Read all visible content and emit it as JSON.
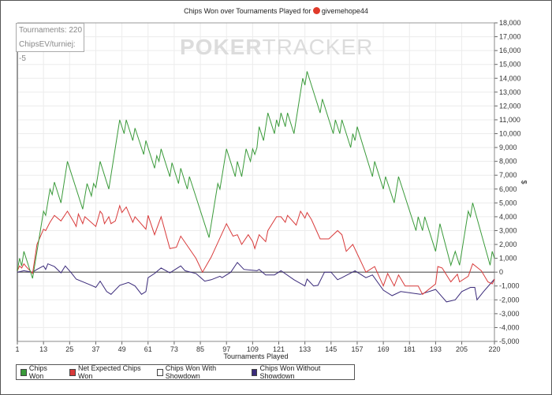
{
  "title_prefix": "Chips Won over Tournaments Played for",
  "player": "givemehope44",
  "watermark": {
    "bold": "POKER",
    "light": "TRACKER"
  },
  "stats": {
    "tournaments": "Tournaments: 220",
    "chipsev": "ChipsEV/turniej: -5"
  },
  "chart_data": {
    "type": "line",
    "title": "Chips Won over Tournaments Played for givemehope44",
    "xlabel": "Tournaments Played",
    "ylabel": "$",
    "xlim": [
      1,
      220
    ],
    "ylim": [
      -5000,
      18000
    ],
    "xticks": [
      1,
      13,
      25,
      37,
      49,
      61,
      73,
      85,
      97,
      109,
      121,
      133,
      145,
      157,
      169,
      181,
      193,
      205,
      220
    ],
    "yticks": [
      -5000,
      -4000,
      -3000,
      -2000,
      -1000,
      0,
      1000,
      2000,
      3000,
      4000,
      5000,
      6000,
      7000,
      8000,
      9000,
      10000,
      11000,
      12000,
      13000,
      14000,
      15000,
      16000,
      17000,
      18000
    ],
    "ytick_labels": [
      "-5,000",
      "-4,000",
      "-3,000",
      "-2,000",
      "-1,000",
      "0",
      "1,000",
      "2,000",
      "3,000",
      "4,000",
      "5,000",
      "6,000",
      "7,000",
      "8,000",
      "9,000",
      "10,000",
      "11,000",
      "12,000",
      "13,000",
      "14,000",
      "15,000",
      "16,000",
      "17,000",
      "18,000"
    ],
    "grid": true,
    "legend_position": "bottom-left",
    "series": [
      {
        "name": "Chips Won",
        "color": "#3a9a3a",
        "points": [
          [
            1,
            100
          ],
          [
            2,
            1000
          ],
          [
            3,
            450
          ],
          [
            4,
            1500
          ],
          [
            8,
            -450
          ],
          [
            13,
            4400
          ],
          [
            14,
            4100
          ],
          [
            16,
            6000
          ],
          [
            17,
            5600
          ],
          [
            18,
            6500
          ],
          [
            21,
            5000
          ],
          [
            24,
            8000
          ],
          [
            31,
            4550
          ],
          [
            33,
            6400
          ],
          [
            35,
            5500
          ],
          [
            36,
            6400
          ],
          [
            37,
            6100
          ],
          [
            39,
            8000
          ],
          [
            43,
            6000
          ],
          [
            48,
            11000
          ],
          [
            50,
            10000
          ],
          [
            51,
            11000
          ],
          [
            54,
            9500
          ],
          [
            55,
            10400
          ],
          [
            59,
            8500
          ],
          [
            60,
            9500
          ],
          [
            64,
            7500
          ],
          [
            65,
            8400
          ],
          [
            66,
            8000
          ],
          [
            67,
            8900
          ],
          [
            71,
            6900
          ],
          [
            72,
            7900
          ],
          [
            75,
            6400
          ],
          [
            76,
            7500
          ],
          [
            79,
            6000
          ],
          [
            80,
            6900
          ],
          [
            89,
            2500
          ],
          [
            93,
            6400
          ],
          [
            94,
            6000
          ],
          [
            97,
            8900
          ],
          [
            101,
            6900
          ],
          [
            102,
            8000
          ],
          [
            104,
            6900
          ],
          [
            106,
            8900
          ],
          [
            108,
            8000
          ],
          [
            109,
            8900
          ],
          [
            110,
            8500
          ],
          [
            111,
            9000
          ],
          [
            112,
            10500
          ],
          [
            114,
            9500
          ],
          [
            116,
            11500
          ],
          [
            119,
            10000
          ],
          [
            120,
            11000
          ],
          [
            121,
            10500
          ],
          [
            122,
            11500
          ],
          [
            124,
            10500
          ],
          [
            125,
            11500
          ],
          [
            128,
            10000
          ],
          [
            132,
            14000
          ],
          [
            133,
            13500
          ],
          [
            134,
            14500
          ],
          [
            140,
            11500
          ],
          [
            141,
            12500
          ],
          [
            146,
            10000
          ],
          [
            147,
            11000
          ],
          [
            149,
            10000
          ],
          [
            150,
            11000
          ],
          [
            154,
            9000
          ],
          [
            155,
            10000
          ],
          [
            156,
            9500
          ],
          [
            157,
            10500
          ],
          [
            164,
            6900
          ],
          [
            165,
            8000
          ],
          [
            169,
            6000
          ],
          [
            170,
            6900
          ],
          [
            174,
            5000
          ],
          [
            176,
            6900
          ],
          [
            184,
            3000
          ],
          [
            185,
            4000
          ],
          [
            187,
            3000
          ],
          [
            188,
            4000
          ],
          [
            193,
            1500
          ],
          [
            195,
            3500
          ],
          [
            200,
            500
          ],
          [
            202,
            1500
          ],
          [
            204,
            500
          ],
          [
            208,
            4400
          ],
          [
            209,
            4000
          ],
          [
            210,
            5000
          ],
          [
            218,
            500
          ],
          [
            219,
            1500
          ],
          [
            220,
            1000
          ]
        ]
      },
      {
        "name": "Net Expected Chips Won",
        "color": "#d83a3a",
        "points": [
          [
            1,
            100
          ],
          [
            2,
            450
          ],
          [
            3,
            300
          ],
          [
            4,
            600
          ],
          [
            5,
            400
          ],
          [
            8,
            -100
          ],
          [
            10,
            2000
          ],
          [
            13,
            3100
          ],
          [
            14,
            3000
          ],
          [
            16,
            3600
          ],
          [
            18,
            4100
          ],
          [
            21,
            3700
          ],
          [
            24,
            4400
          ],
          [
            27,
            3600
          ],
          [
            28,
            3300
          ],
          [
            29,
            4200
          ],
          [
            31,
            3500
          ],
          [
            32,
            4000
          ],
          [
            37,
            3300
          ],
          [
            39,
            4400
          ],
          [
            40,
            4200
          ],
          [
            41,
            3500
          ],
          [
            43,
            4000
          ],
          [
            44,
            3500
          ],
          [
            46,
            3700
          ],
          [
            48,
            4800
          ],
          [
            49,
            4300
          ],
          [
            51,
            4700
          ],
          [
            54,
            3600
          ],
          [
            55,
            4000
          ],
          [
            60,
            3100
          ],
          [
            61,
            4100
          ],
          [
            64,
            2700
          ],
          [
            67,
            4000
          ],
          [
            71,
            1700
          ],
          [
            74,
            1800
          ],
          [
            76,
            2600
          ],
          [
            83,
            1000
          ],
          [
            86,
            0
          ],
          [
            90,
            1100
          ],
          [
            97,
            3500
          ],
          [
            100,
            2600
          ],
          [
            102,
            2700
          ],
          [
            104,
            2000
          ],
          [
            107,
            2700
          ],
          [
            109,
            2200
          ],
          [
            110,
            1700
          ],
          [
            112,
            2700
          ],
          [
            115,
            2200
          ],
          [
            116,
            3000
          ],
          [
            120,
            4000
          ],
          [
            122,
            4000
          ],
          [
            124,
            3600
          ],
          [
            125,
            4100
          ],
          [
            129,
            3400
          ],
          [
            131,
            4400
          ],
          [
            133,
            3900
          ],
          [
            134,
            4300
          ],
          [
            136,
            3800
          ],
          [
            140,
            2400
          ],
          [
            144,
            2400
          ],
          [
            148,
            3000
          ],
          [
            150,
            2700
          ],
          [
            152,
            1500
          ],
          [
            155,
            2000
          ],
          [
            161,
            0
          ],
          [
            165,
            400
          ],
          [
            169,
            -1000
          ],
          [
            171,
            -100
          ],
          [
            174,
            -1000
          ],
          [
            176,
            -200
          ],
          [
            179,
            -1000
          ],
          [
            185,
            -1000
          ],
          [
            187,
            -1600
          ],
          [
            193,
            -850
          ],
          [
            194,
            400
          ],
          [
            196,
            300
          ],
          [
            200,
            -700
          ],
          [
            203,
            -150
          ],
          [
            204,
            -700
          ],
          [
            208,
            -300
          ],
          [
            210,
            600
          ],
          [
            214,
            100
          ],
          [
            217,
            -700
          ],
          [
            219,
            -850
          ],
          [
            220,
            -500
          ]
        ]
      },
      {
        "name": "Chips Won With Showdown",
        "color": "#ffffff",
        "points": []
      },
      {
        "name": "Chips Won Without Showdown",
        "color": "#3a2a7a",
        "points": [
          [
            1,
            0
          ],
          [
            4,
            100
          ],
          [
            8,
            0
          ],
          [
            10,
            200
          ],
          [
            13,
            450
          ],
          [
            14,
            200
          ],
          [
            15,
            600
          ],
          [
            18,
            400
          ],
          [
            21,
            -50
          ],
          [
            23,
            450
          ],
          [
            26,
            -100
          ],
          [
            28,
            -500
          ],
          [
            35,
            -950
          ],
          [
            37,
            -1100
          ],
          [
            39,
            -650
          ],
          [
            42,
            -1400
          ],
          [
            44,
            -1600
          ],
          [
            48,
            -950
          ],
          [
            52,
            -750
          ],
          [
            55,
            -1000
          ],
          [
            58,
            -1600
          ],
          [
            60,
            -1400
          ],
          [
            61,
            -400
          ],
          [
            64,
            -100
          ],
          [
            67,
            300
          ],
          [
            71,
            -50
          ],
          [
            76,
            450
          ],
          [
            78,
            100
          ],
          [
            83,
            -100
          ],
          [
            87,
            -650
          ],
          [
            90,
            -550
          ],
          [
            94,
            -300
          ],
          [
            95,
            -400
          ],
          [
            99,
            0
          ],
          [
            102,
            700
          ],
          [
            105,
            200
          ],
          [
            111,
            100
          ],
          [
            112,
            200
          ],
          [
            115,
            -200
          ],
          [
            119,
            -200
          ],
          [
            122,
            100
          ],
          [
            128,
            -550
          ],
          [
            133,
            -1000
          ],
          [
            134,
            -500
          ],
          [
            137,
            -1000
          ],
          [
            139,
            -950
          ],
          [
            142,
            0
          ],
          [
            145,
            0
          ],
          [
            148,
            -550
          ],
          [
            150,
            -400
          ],
          [
            156,
            100
          ],
          [
            161,
            -400
          ],
          [
            164,
            -200
          ],
          [
            169,
            -1300
          ],
          [
            173,
            -1700
          ],
          [
            177,
            -1400
          ],
          [
            186,
            -1600
          ],
          [
            193,
            -1250
          ],
          [
            198,
            -2150
          ],
          [
            202,
            -2000
          ],
          [
            205,
            -1400
          ],
          [
            209,
            -1100
          ],
          [
            211,
            -1100
          ],
          [
            212,
            -2000
          ],
          [
            215,
            -1400
          ],
          [
            220,
            -500
          ]
        ]
      }
    ]
  }
}
